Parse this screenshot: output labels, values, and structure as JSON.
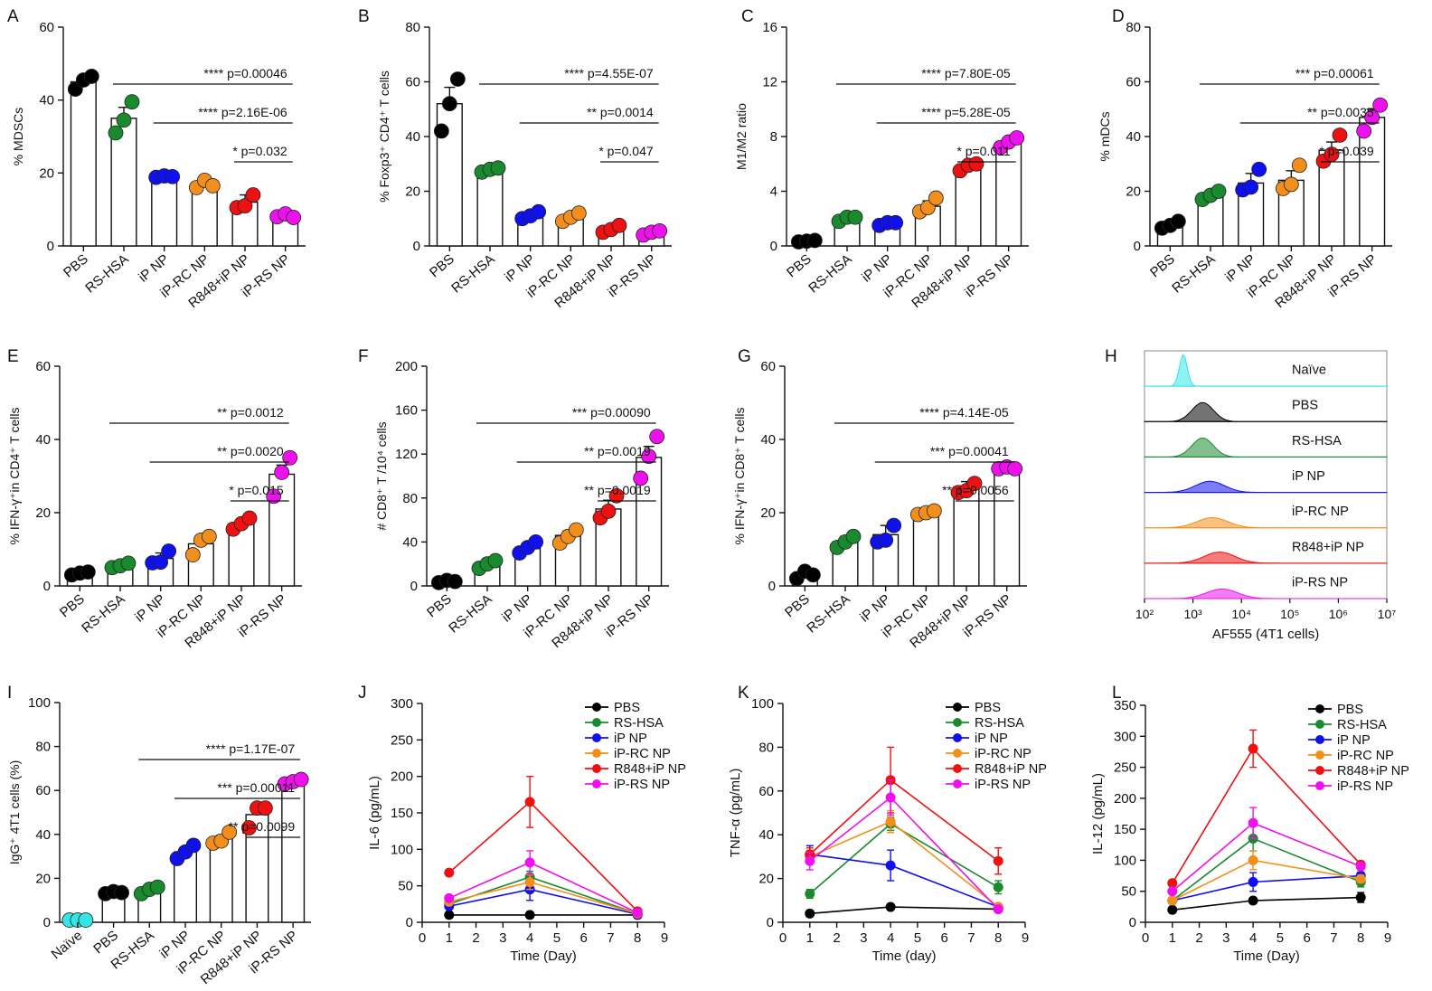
{
  "figure_title": "Multi-panel immunology figure",
  "colors": {
    "PBS": "#000000",
    "RS-HSA": "#1a8a2e",
    "iP NP": "#1010ee",
    "iP-RC NP": "#f28f1c",
    "R848+iP NP": "#ee1111",
    "iP-RS NP": "#ee11ee",
    "Naive": "#33e5e5"
  },
  "chart_data": [
    {
      "panel": "A",
      "type": "bar",
      "ylabel": "% MDSCs",
      "ylim": [
        0,
        60
      ],
      "yticks": [
        0,
        20,
        40,
        60
      ],
      "categories": [
        "PBS",
        "RS-HSA",
        "iP NP",
        "iP-RC NP",
        "R848+iP NP",
        "iP-RS NP"
      ],
      "color_keys": [
        "PBS",
        "RS-HSA",
        "iP NP",
        "iP-RC NP",
        "R848+iP NP",
        "iP-RS NP"
      ],
      "values": [
        45,
        35,
        19,
        17,
        12,
        8
      ],
      "errors": [
        1.5,
        3,
        0.5,
        1.5,
        2,
        0.8
      ],
      "points": [
        [
          43,
          45.5,
          46.5
        ],
        [
          31,
          34.5,
          39.5
        ],
        [
          18.8,
          19.2,
          19
        ],
        [
          16,
          18,
          16.5
        ],
        [
          10.5,
          11,
          14
        ],
        [
          8,
          8.8,
          7.8
        ]
      ],
      "significance": [
        {
          "from": 1,
          "to": 5,
          "label": "**** p=0.00046"
        },
        {
          "from": 2,
          "to": 5,
          "label": "**** p=2.16E-06"
        },
        {
          "from": 4,
          "to": 5,
          "label": "* p=0.032"
        }
      ]
    },
    {
      "panel": "B",
      "type": "bar",
      "ylabel": "% Foxp3⁺ CD4⁺ T cells",
      "ylim": [
        0,
        80
      ],
      "yticks": [
        0,
        20,
        40,
        60,
        80
      ],
      "categories": [
        "PBS",
        "RS-HSA",
        "iP NP",
        "iP-RC NP",
        "R848+iP NP",
        "iP-RS NP"
      ],
      "color_keys": [
        "PBS",
        "RS-HSA",
        "iP NP",
        "iP-RC NP",
        "R848+iP NP",
        "iP-RS NP"
      ],
      "values": [
        52,
        28,
        11,
        10,
        6,
        4.5
      ],
      "errors": [
        6,
        0.7,
        1.2,
        1.5,
        1.2,
        0.6
      ],
      "points": [
        [
          42,
          52,
          61
        ],
        [
          27,
          28,
          28.5
        ],
        [
          10,
          11,
          12.5
        ],
        [
          9,
          10.5,
          12
        ],
        [
          5,
          6,
          7.5
        ],
        [
          4,
          5,
          5.5
        ]
      ],
      "significance": [
        {
          "from": 1,
          "to": 5,
          "label": "**** p=4.55E-07"
        },
        {
          "from": 2,
          "to": 5,
          "label": "** p=0.0014"
        },
        {
          "from": 4,
          "to": 5,
          "label": "* p=0.047"
        }
      ]
    },
    {
      "panel": "C",
      "type": "bar",
      "ylabel": "M1/M2 ratio",
      "ylim": [
        0,
        16
      ],
      "yticks": [
        0,
        4,
        8,
        12,
        16
      ],
      "categories": [
        "PBS",
        "RS-HSA",
        "iP NP",
        "iP-RC NP",
        "R848+iP NP",
        "iP-RS NP"
      ],
      "color_keys": [
        "PBS",
        "RS-HSA",
        "iP NP",
        "iP-RC NP",
        "R848+iP NP",
        "iP-RS NP"
      ],
      "values": [
        0.35,
        2,
        1.6,
        2.9,
        5.8,
        7.6
      ],
      "errors": [
        0.05,
        0.2,
        0.2,
        0.4,
        0.25,
        0.35
      ],
      "points": [
        [
          0.3,
          0.35,
          0.4
        ],
        [
          1.8,
          2.1,
          2.1
        ],
        [
          1.5,
          1.7,
          1.7
        ],
        [
          2.5,
          2.8,
          3.5
        ],
        [
          5.5,
          5.9,
          6.0
        ],
        [
          7.2,
          7.6,
          7.9
        ]
      ],
      "significance": [
        {
          "from": 1,
          "to": 5,
          "label": "**** p=7.80E-05"
        },
        {
          "from": 2,
          "to": 5,
          "label": "**** p=5.28E-05"
        },
        {
          "from": 4,
          "to": 5,
          "label": "* p=0.011"
        }
      ]
    },
    {
      "panel": "D",
      "type": "bar",
      "ylabel": "% mDCs",
      "ylim": [
        0,
        80
      ],
      "yticks": [
        0,
        20,
        40,
        60,
        80
      ],
      "categories": [
        "PBS",
        "RS-HSA",
        "iP NP",
        "iP-RC NP",
        "R848+iP NP",
        "iP-RS NP"
      ],
      "color_keys": [
        "PBS",
        "RS-HSA",
        "iP NP",
        "iP-RC NP",
        "R848+iP NP",
        "iP-RS NP"
      ],
      "values": [
        8,
        19,
        23,
        24,
        35,
        47
      ],
      "errors": [
        1,
        1,
        3.5,
        3.5,
        3,
        3
      ],
      "points": [
        [
          6.5,
          7.5,
          9
        ],
        [
          17,
          18.5,
          20
        ],
        [
          20.5,
          21.5,
          28
        ],
        [
          21,
          22.5,
          29.5
        ],
        [
          31,
          33.5,
          40.5
        ],
        [
          42,
          47,
          51.5
        ]
      ],
      "significance": [
        {
          "from": 1,
          "to": 5,
          "label": "*** p=0.00061"
        },
        {
          "from": 2,
          "to": 5,
          "label": "** p=0.0035"
        },
        {
          "from": 4,
          "to": 5,
          "label": "* p=0.039"
        }
      ]
    },
    {
      "panel": "E",
      "type": "bar",
      "ylabel": "% IFN-γ⁺in CD4⁺ T cells",
      "ylim": [
        0,
        60
      ],
      "yticks": [
        0,
        20,
        40,
        60
      ],
      "categories": [
        "PBS",
        "RS-HSA",
        "iP NP",
        "iP-RC NP",
        "R848+iP NP",
        "iP-RS NP"
      ],
      "color_keys": [
        "PBS",
        "RS-HSA",
        "iP NP",
        "iP-RC NP",
        "R848+iP NP",
        "iP-RS NP"
      ],
      "values": [
        3.5,
        5.5,
        7.5,
        11.5,
        17,
        30.5
      ],
      "errors": [
        0.3,
        0.5,
        1.5,
        2,
        1.2,
        2.5
      ],
      "points": [
        [
          3.0,
          3.5,
          3.8
        ],
        [
          5,
          5.5,
          6.2
        ],
        [
          6.3,
          6.5,
          9.5
        ],
        [
          8.5,
          12.5,
          13.5
        ],
        [
          15.5,
          17,
          18.5
        ],
        [
          24.5,
          31,
          35
        ]
      ],
      "significance": [
        {
          "from": 1,
          "to": 5,
          "label": "** p=0.0012"
        },
        {
          "from": 2,
          "to": 5,
          "label": "** p=0.0020"
        },
        {
          "from": 4,
          "to": 5,
          "label": "* p=0.015"
        }
      ]
    },
    {
      "panel": "F",
      "type": "bar",
      "ylabel": "# CD8⁺ T /10⁴ cells",
      "ylim": [
        0,
        200
      ],
      "yticks": [
        0,
        40,
        80,
        120,
        160,
        200
      ],
      "categories": [
        "PBS",
        "RS-HSA",
        "iP NP",
        "iP-RC NP",
        "R848+iP NP",
        "iP-RS NP"
      ],
      "color_keys": [
        "PBS",
        "RS-HSA",
        "iP NP",
        "iP-RC NP",
        "R848+iP NP",
        "iP-RS NP"
      ],
      "values": [
        4,
        19,
        34,
        46,
        70,
        117
      ],
      "errors": [
        1,
        2,
        4,
        4,
        8,
        10
      ],
      "points": [
        [
          3,
          5,
          4
        ],
        [
          16,
          20,
          23
        ],
        [
          30,
          35,
          40
        ],
        [
          39,
          45,
          51
        ],
        [
          62,
          68,
          82
        ],
        [
          98,
          118,
          136
        ]
      ],
      "significance": [
        {
          "from": 1,
          "to": 5,
          "label": "*** p=0.00090"
        },
        {
          "from": 2,
          "to": 5,
          "label": "** p=0.0019"
        },
        {
          "from": 4,
          "to": 5,
          "label": "** p=0.0019"
        }
      ]
    },
    {
      "panel": "G",
      "type": "bar",
      "ylabel": "% IFN-γ⁺in CD8⁺ T cells",
      "ylim": [
        0,
        60
      ],
      "yticks": [
        0,
        20,
        40,
        60
      ],
      "categories": [
        "PBS",
        "RS-HSA",
        "iP NP",
        "iP-RC NP",
        "R848+iP NP",
        "iP-RS NP"
      ],
      "color_keys": [
        "PBS",
        "RS-HSA",
        "iP NP",
        "iP-RC NP",
        "R848+iP NP",
        "iP-RS NP"
      ],
      "values": [
        3,
        12,
        14,
        20,
        27,
        32
      ],
      "errors": [
        1,
        1.5,
        2.5,
        0.8,
        1.5,
        0.7
      ],
      "points": [
        [
          2,
          4,
          3
        ],
        [
          10.5,
          12,
          13.5
        ],
        [
          12,
          12.5,
          16.5
        ],
        [
          19.5,
          20,
          20.5
        ],
        [
          25.5,
          26,
          28
        ],
        [
          32,
          32.5,
          32
        ]
      ],
      "significance": [
        {
          "from": 1,
          "to": 5,
          "label": "**** p=4.14E-05"
        },
        {
          "from": 2,
          "to": 5,
          "label": "*** p=0.00041"
        },
        {
          "from": 4,
          "to": 5,
          "label": "** p=0.0056"
        }
      ]
    },
    {
      "panel": "H",
      "type": "histogram-stack",
      "xlabel": "AF555 (4T1 cells)",
      "xtick_labels": [
        "10²",
        "10³",
        "10⁴",
        "10⁵",
        "10⁶",
        "10⁷"
      ],
      "xlog_range": [
        2,
        7
      ],
      "tracks": [
        {
          "label": "Naïve",
          "color_key": "Naive",
          "peak_log": 2.8,
          "width": 0.08,
          "height": 1.0
        },
        {
          "label": "PBS",
          "color_key": "PBS",
          "peak_log": 3.2,
          "width": 0.22,
          "height": 0.6
        },
        {
          "label": "RS-HSA",
          "color_key": "RS-HSA",
          "peak_log": 3.2,
          "width": 0.22,
          "height": 0.6
        },
        {
          "label": "iP NP",
          "color_key": "iP NP",
          "peak_log": 3.35,
          "width": 0.3,
          "height": 0.35
        },
        {
          "label": "iP-RC NP",
          "color_key": "iP-RC NP",
          "peak_log": 3.4,
          "width": 0.32,
          "height": 0.32
        },
        {
          "label": "R848+iP NP",
          "color_key": "R848+iP NP",
          "peak_log": 3.55,
          "width": 0.32,
          "height": 0.35
        },
        {
          "label": "iP-RS NP",
          "color_key": "iP-RS NP",
          "peak_log": 3.6,
          "width": 0.32,
          "height": 0.3
        }
      ]
    },
    {
      "panel": "I",
      "type": "bar",
      "ylabel": "IgG⁺ 4T1 cells (%)",
      "ylim": [
        0,
        100
      ],
      "yticks": [
        0,
        20,
        40,
        60,
        80,
        100
      ],
      "categories": [
        "Naïve",
        "PBS",
        "RS-HSA",
        "iP NP",
        "iP-RC NP",
        "R848+iP NP",
        "iP-RS NP"
      ],
      "color_keys": [
        "Naive",
        "PBS",
        "RS-HSA",
        "iP NP",
        "iP-RC NP",
        "R848+iP NP",
        "iP-RS NP"
      ],
      "values": [
        1,
        13.5,
        14.5,
        32,
        38,
        49,
        64
      ],
      "errors": [
        0.2,
        0.5,
        1,
        2,
        1.5,
        3,
        0.8
      ],
      "points": [
        [
          1,
          1,
          1
        ],
        [
          13,
          14,
          13.5
        ],
        [
          13,
          15,
          16
        ],
        [
          29,
          32,
          35
        ],
        [
          36,
          37,
          41
        ],
        [
          43,
          52,
          52
        ],
        [
          63,
          64,
          65
        ]
      ],
      "significance": [
        {
          "from": 2,
          "to": 6,
          "label": "**** p=1.17E-07"
        },
        {
          "from": 3,
          "to": 6,
          "label": "*** p=0.00011"
        },
        {
          "from": 5,
          "to": 6,
          "label": "** p=0.0099"
        }
      ]
    },
    {
      "panel": "J",
      "type": "line",
      "ylabel": "IL-6 (pg/mL)",
      "xlabel": "Time (Day)",
      "xlim": [
        0,
        9
      ],
      "xticks": [
        0,
        1,
        2,
        3,
        4,
        5,
        6,
        7,
        8,
        9
      ],
      "ylim": [
        0,
        300
      ],
      "yticks": [
        0,
        50,
        100,
        150,
        200,
        250,
        300
      ],
      "x": [
        1,
        4,
        8
      ],
      "series": [
        {
          "name": "PBS",
          "color_key": "PBS",
          "values": [
            10,
            10,
            10
          ],
          "errors": [
            1,
            1,
            1
          ]
        },
        {
          "name": "RS-HSA",
          "color_key": "RS-HSA",
          "values": [
            25,
            62,
            12
          ],
          "errors": [
            2,
            8,
            2
          ]
        },
        {
          "name": "iP NP",
          "color_key": "iP NP",
          "values": [
            22,
            45,
            11
          ],
          "errors": [
            2,
            15,
            2
          ]
        },
        {
          "name": "iP-RC NP",
          "color_key": "iP-RC NP",
          "values": [
            28,
            55,
            12
          ],
          "errors": [
            2,
            10,
            2
          ]
        },
        {
          "name": "R848+iP NP",
          "color_key": "R848+iP NP",
          "values": [
            68,
            165,
            15
          ],
          "errors": [
            4,
            35,
            3
          ]
        },
        {
          "name": "iP-RS NP",
          "color_key": "iP-RS NP",
          "values": [
            33,
            82,
            13
          ],
          "errors": [
            3,
            16,
            2
          ]
        }
      ]
    },
    {
      "panel": "K",
      "type": "line",
      "ylabel": "TNF-α (pg/mL)",
      "xlabel": "Time (day)",
      "xlim": [
        0,
        9
      ],
      "xticks": [
        0,
        1,
        2,
        3,
        4,
        5,
        6,
        7,
        8,
        9
      ],
      "ylim": [
        0,
        100
      ],
      "yticks": [
        0,
        20,
        40,
        60,
        80,
        100
      ],
      "x": [
        1,
        4,
        8
      ],
      "series": [
        {
          "name": "PBS",
          "color_key": "PBS",
          "values": [
            4,
            7,
            6
          ],
          "errors": [
            0.5,
            0.8,
            0.5
          ]
        },
        {
          "name": "RS-HSA",
          "color_key": "RS-HSA",
          "values": [
            13,
            45,
            16
          ],
          "errors": [
            2,
            3,
            3
          ]
        },
        {
          "name": "iP NP",
          "color_key": "iP NP",
          "values": [
            31,
            26,
            7
          ],
          "errors": [
            4,
            7,
            1
          ]
        },
        {
          "name": "iP-RC NP",
          "color_key": "iP-RC NP",
          "values": [
            30,
            46,
            7
          ],
          "errors": [
            3,
            5,
            1
          ]
        },
        {
          "name": "R848+iP NP",
          "color_key": "R848+iP NP",
          "values": [
            31,
            65,
            28
          ],
          "errors": [
            3,
            15,
            6
          ]
        },
        {
          "name": "iP-RS NP",
          "color_key": "iP-RS NP",
          "values": [
            28,
            57,
            6
          ],
          "errors": [
            4,
            8,
            1
          ]
        }
      ]
    },
    {
      "panel": "L",
      "type": "line",
      "ylabel": "IL-12 (pg/mL)",
      "xlabel": "Time (Day)",
      "xlim": [
        0,
        9
      ],
      "xticks": [
        0,
        1,
        2,
        3,
        4,
        5,
        6,
        7,
        8,
        9
      ],
      "ylim": [
        0,
        350
      ],
      "yticks": [
        0,
        50,
        100,
        150,
        200,
        250,
        300,
        350
      ],
      "x": [
        1,
        4,
        8
      ],
      "series": [
        {
          "name": "PBS",
          "color_key": "PBS",
          "values": [
            20,
            35,
            40
          ],
          "errors": [
            2,
            5,
            8
          ]
        },
        {
          "name": "RS-HSA",
          "color_key": "RS-HSA",
          "values": [
            35,
            135,
            65
          ],
          "errors": [
            3,
            20,
            8
          ]
        },
        {
          "name": "iP NP",
          "color_key": "iP NP",
          "values": [
            35,
            65,
            75
          ],
          "errors": [
            3,
            15,
            6
          ]
        },
        {
          "name": "iP-RC NP",
          "color_key": "iP-RC NP",
          "values": [
            35,
            100,
            70
          ],
          "errors": [
            3,
            15,
            6
          ]
        },
        {
          "name": "R848+iP NP",
          "color_key": "R848+iP NP",
          "values": [
            63,
            280,
            93
          ],
          "errors": [
            5,
            30,
            5
          ]
        },
        {
          "name": "iP-RS NP",
          "color_key": "iP-RS NP",
          "values": [
            50,
            160,
            90
          ],
          "errors": [
            4,
            25,
            5
          ]
        }
      ]
    }
  ]
}
